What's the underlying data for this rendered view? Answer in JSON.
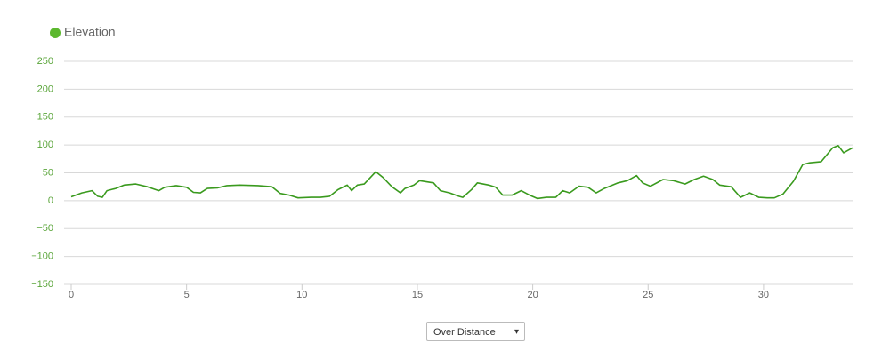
{
  "chart_data": {
    "type": "line",
    "legend_position": "top-left",
    "grid": true,
    "xlim": [
      0,
      33.86
    ],
    "ylim": [
      -150,
      250
    ],
    "xticks": [
      0,
      5,
      10,
      15,
      20,
      25,
      30
    ],
    "yticks": [
      {
        "value": -150,
        "label": "−150"
      },
      {
        "value": -100,
        "label": "−100"
      },
      {
        "value": -50,
        "label": "−50"
      },
      0,
      50,
      100,
      150,
      200,
      250
    ],
    "x": [
      0,
      0.46,
      0.9,
      1.15,
      1.35,
      1.55,
      1.93,
      2.3,
      2.8,
      3.3,
      3.8,
      4.05,
      4.55,
      5.0,
      5.3,
      5.6,
      5.9,
      6.35,
      6.75,
      7.3,
      8.1,
      8.7,
      9.06,
      9.45,
      9.83,
      10.4,
      10.8,
      11.2,
      11.57,
      11.96,
      12.15,
      12.4,
      12.7,
      13.2,
      13.5,
      13.9,
      14.27,
      14.46,
      14.85,
      15.1,
      15.7,
      16.0,
      16.4,
      16.8,
      16.97,
      17.35,
      17.6,
      18.1,
      18.4,
      18.7,
      19.1,
      19.5,
      19.86,
      20.2,
      20.6,
      21.0,
      21.3,
      21.6,
      22.0,
      22.4,
      22.75,
      23.1,
      23.7,
      24.1,
      24.5,
      24.76,
      25.1,
      25.65,
      26.1,
      26.6,
      27.0,
      27.4,
      27.8,
      28.1,
      28.6,
      29.0,
      29.4,
      29.8,
      30.16,
      30.47,
      30.85,
      31.3,
      31.7,
      32.0,
      32.5,
      33.0,
      33.24,
      33.47,
      33.86
    ],
    "series": [
      {
        "name": "Elevation",
        "color": "#3a9a1e",
        "values": [
          7,
          14,
          18,
          8,
          6,
          18,
          22,
          28,
          30,
          25,
          18,
          24,
          27,
          24,
          15,
          14,
          22,
          23,
          27,
          28,
          27,
          25,
          13,
          10,
          5,
          6,
          6,
          8,
          20,
          28,
          18,
          28,
          30,
          52,
          42,
          25,
          14,
          22,
          28,
          36,
          32,
          18,
          14,
          8,
          6,
          20,
          32,
          28,
          24,
          10,
          10,
          18,
          10,
          4,
          6,
          6,
          18,
          14,
          26,
          24,
          14,
          22,
          32,
          36,
          45,
          32,
          26,
          38,
          36,
          30,
          38,
          44,
          38,
          28,
          25,
          6,
          14,
          6,
          5,
          5,
          12,
          35,
          65,
          68,
          70,
          95,
          99,
          86,
          95
        ]
      }
    ]
  },
  "controls": {
    "dropdown": "Over Distance"
  }
}
